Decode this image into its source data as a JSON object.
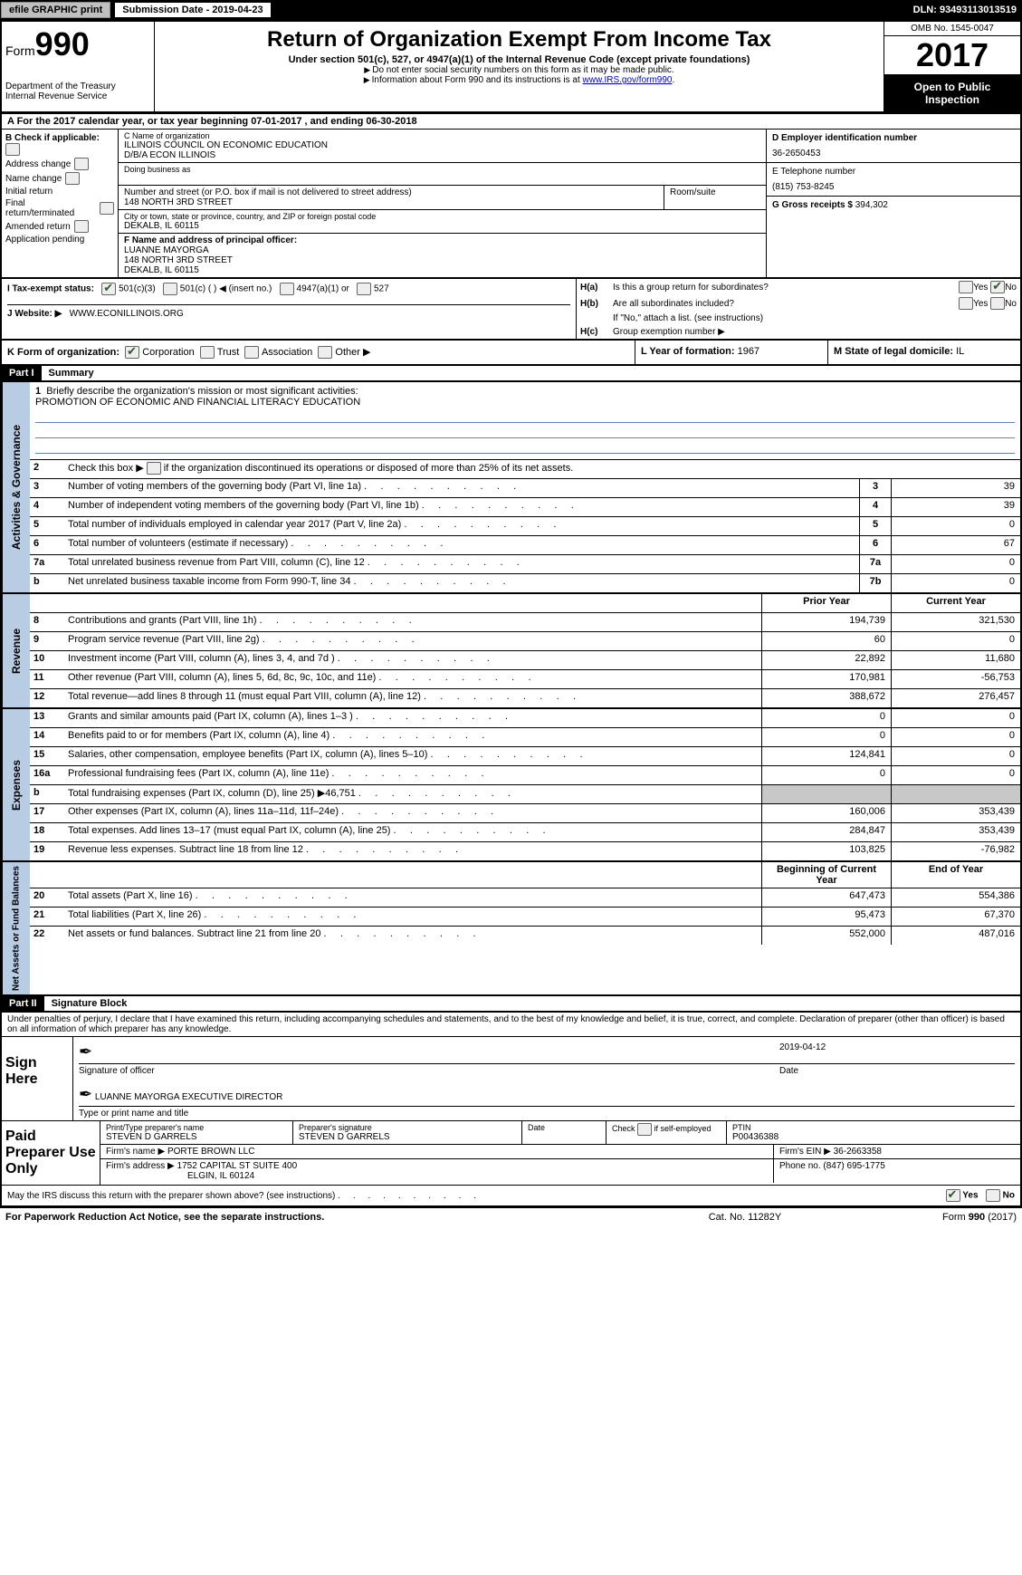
{
  "topbar": {
    "efile": "efile GRAPHIC print",
    "submission": "Submission Date - 2019-04-23",
    "dln": "DLN: 93493113013519"
  },
  "header": {
    "form_prefix": "Form",
    "form_number": "990",
    "dept": "Department of the Treasury",
    "irs": "Internal Revenue Service",
    "title": "Return of Organization Exempt From Income Tax",
    "sub1": "Under section 501(c), 527, or 4947(a)(1) of the Internal Revenue Code (except private foundations)",
    "sub2": "Do not enter social security numbers on this form as it may be made public.",
    "sub3_pre": "Information about Form 990 and its instructions is at ",
    "sub3_link": "www.IRS.gov/form990",
    "omb": "OMB No. 1545-0047",
    "year": "2017",
    "open": "Open to Public Inspection"
  },
  "rowA": "A   For the 2017 calendar year, or tax year beginning 07-01-2017       , and ending 06-30-2018",
  "colB": {
    "label": "B Check if applicable:",
    "items": [
      "Address change",
      "Name change",
      "Initial return",
      "Final return/terminated",
      "Amended return",
      "Application pending"
    ]
  },
  "colC": {
    "name_lbl": "C Name of organization",
    "name": "ILLINOIS COUNCIL ON ECONOMIC EDUCATION",
    "dba": "D/B/A ECON ILLINOIS",
    "dba_lbl": "Doing business as",
    "street_lbl": "Number and street (or P.O. box if mail is not delivered to street address)",
    "room_lbl": "Room/suite",
    "street": "148 NORTH 3RD STREET",
    "city_lbl": "City or town, state or province, country, and ZIP or foreign postal code",
    "city": "DEKALB, IL   60115",
    "officer_lbl": "F Name and address of principal officer:",
    "officer_name": "LUANNE MAYORGA",
    "officer_street": "148 NORTH 3RD STREET",
    "officer_city": "DEKALB, IL   60115"
  },
  "colD": {
    "ein_lbl": "D Employer identification number",
    "ein": "36-2650453",
    "tel_lbl": "E Telephone number",
    "tel": "(815) 753-8245",
    "gross_lbl": "G Gross receipts $",
    "gross": "394,302"
  },
  "hbox": {
    "ha": "H(a)",
    "ha_text": "Is this a group return for subordinates?",
    "hb": "H(b)",
    "hb_text": "Are all subordinates included?",
    "hb_note": "If \"No,\" attach a list. (see instructions)",
    "hc": "H(c)",
    "hc_text": "Group exemption number ▶",
    "yes": "Yes",
    "no": "No"
  },
  "rowI": {
    "label": "I     Tax-exempt status:",
    "o1": "501(c)(3)",
    "o2": "501(c) (  ) ◀ (insert no.)",
    "o3": "4947(a)(1) or",
    "o4": "527"
  },
  "rowJ": {
    "label": "J   Website: ▶",
    "value": "WWW.ECONILLINOIS.ORG"
  },
  "rowK": {
    "label": "K Form of organization:",
    "o1": "Corporation",
    "o2": "Trust",
    "o3": "Association",
    "o4": "Other ▶",
    "l_lbl": "L Year of formation:",
    "l_val": "1967",
    "m_lbl": "M State of legal domicile:",
    "m_val": "IL"
  },
  "part1": {
    "header": "Part I",
    "title": "Summary"
  },
  "governance": {
    "label": "Activities & Governance",
    "line1_lbl": "Briefly describe the organization's mission or most significant activities:",
    "line1_val": "PROMOTION OF ECONOMIC AND FINANCIAL LITERACY EDUCATION",
    "line2": "Check this box ▶        if the organization discontinued its operations or disposed of more than 25% of its net assets.",
    "rows": [
      {
        "n": "3",
        "d": "Number of voting members of the governing body (Part VI, line 1a)",
        "c": "3",
        "v": "39"
      },
      {
        "n": "4",
        "d": "Number of independent voting members of the governing body (Part VI, line 1b)",
        "c": "4",
        "v": "39"
      },
      {
        "n": "5",
        "d": "Total number of individuals employed in calendar year 2017 (Part V, line 2a)",
        "c": "5",
        "v": "0"
      },
      {
        "n": "6",
        "d": "Total number of volunteers (estimate if necessary)",
        "c": "6",
        "v": "67"
      },
      {
        "n": "7a",
        "d": "Total unrelated business revenue from Part VIII, column (C), line 12",
        "c": "7a",
        "v": "0"
      },
      {
        "n": "b",
        "d": "Net unrelated business taxable income from Form 990-T, line 34",
        "c": "7b",
        "v": "0"
      }
    ]
  },
  "revenue": {
    "label": "Revenue",
    "header_prior": "Prior Year",
    "header_current": "Current Year",
    "rows": [
      {
        "n": "8",
        "d": "Contributions and grants (Part VIII, line 1h)",
        "p": "194,739",
        "c": "321,530"
      },
      {
        "n": "9",
        "d": "Program service revenue (Part VIII, line 2g)",
        "p": "60",
        "c": "0"
      },
      {
        "n": "10",
        "d": "Investment income (Part VIII, column (A), lines 3, 4, and 7d )",
        "p": "22,892",
        "c": "11,680"
      },
      {
        "n": "11",
        "d": "Other revenue (Part VIII, column (A), lines 5, 6d, 8c, 9c, 10c, and 11e)",
        "p": "170,981",
        "c": "-56,753"
      },
      {
        "n": "12",
        "d": "Total revenue—add lines 8 through 11 (must equal Part VIII, column (A), line 12)",
        "p": "388,672",
        "c": "276,457"
      }
    ]
  },
  "expenses": {
    "label": "Expenses",
    "rows": [
      {
        "n": "13",
        "d": "Grants and similar amounts paid (Part IX, column (A), lines 1–3 )",
        "p": "0",
        "c": "0"
      },
      {
        "n": "14",
        "d": "Benefits paid to or for members (Part IX, column (A), line 4)",
        "p": "0",
        "c": "0"
      },
      {
        "n": "15",
        "d": "Salaries, other compensation, employee benefits (Part IX, column (A), lines 5–10)",
        "p": "124,841",
        "c": "0"
      },
      {
        "n": "16a",
        "d": "Professional fundraising fees (Part IX, column (A), line 11e)",
        "p": "0",
        "c": "0"
      },
      {
        "n": "b",
        "d": "Total fundraising expenses (Part IX, column (D), line 25) ▶46,751",
        "p": "",
        "c": "",
        "shade": true
      },
      {
        "n": "17",
        "d": "Other expenses (Part IX, column (A), lines 11a–11d, 11f–24e)",
        "p": "160,006",
        "c": "353,439"
      },
      {
        "n": "18",
        "d": "Total expenses. Add lines 13–17 (must equal Part IX, column (A), line 25)",
        "p": "284,847",
        "c": "353,439"
      },
      {
        "n": "19",
        "d": "Revenue less expenses. Subtract line 18 from line 12",
        "p": "103,825",
        "c": "-76,982"
      }
    ]
  },
  "netassets": {
    "label": "Net Assets or Fund Balances",
    "header_begin": "Beginning of Current Year",
    "header_end": "End of Year",
    "rows": [
      {
        "n": "20",
        "d": "Total assets (Part X, line 16)",
        "p": "647,473",
        "c": "554,386"
      },
      {
        "n": "21",
        "d": "Total liabilities (Part X, line 26)",
        "p": "95,473",
        "c": "67,370"
      },
      {
        "n": "22",
        "d": "Net assets or fund balances. Subtract line 21 from line 20",
        "p": "552,000",
        "c": "487,016"
      }
    ]
  },
  "part2": {
    "header": "Part II",
    "title": "Signature Block",
    "declare": "Under penalties of perjury, I declare that I have examined this return, including accompanying schedules and statements, and to the best of my knowledge and belief, it is true, correct, and complete. Declaration of preparer (other than officer) is based on all information of which preparer has any knowledge."
  },
  "sign": {
    "label": "Sign Here",
    "sig_lbl": "Signature of officer",
    "date": "2019-04-12",
    "date_lbl": "Date",
    "name": "LUANNE MAYORGA  EXECUTIVE DIRECTOR",
    "name_lbl": "Type or print name and title"
  },
  "paid": {
    "label": "Paid Preparer Use Only",
    "prep_name_lbl": "Print/Type preparer's name",
    "prep_name": "STEVEN D GARRELS",
    "prep_sig_lbl": "Preparer's signature",
    "prep_sig": "STEVEN D GARRELS",
    "date_lbl": "Date",
    "check_lbl": "Check         if self-employed",
    "ptin_lbl": "PTIN",
    "ptin": "P00436388",
    "firm_name_lbl": "Firm's name    ▶",
    "firm_name": "PORTE BROWN LLC",
    "firm_ein_lbl": "Firm's EIN ▶",
    "firm_ein": "36-2663358",
    "firm_addr_lbl": "Firm's address ▶",
    "firm_addr": "1752 CAPITAL ST SUITE 400",
    "firm_city": "ELGIN, IL   60124",
    "phone_lbl": "Phone no.",
    "phone": "(847) 695-1775"
  },
  "irs_discuss": "May the IRS discuss this return with the preparer shown above? (see instructions)",
  "footer": {
    "l": "For Paperwork Reduction Act Notice, see the separate instructions.",
    "c": "Cat. No. 11282Y",
    "r": "Form 990 (2017)"
  }
}
